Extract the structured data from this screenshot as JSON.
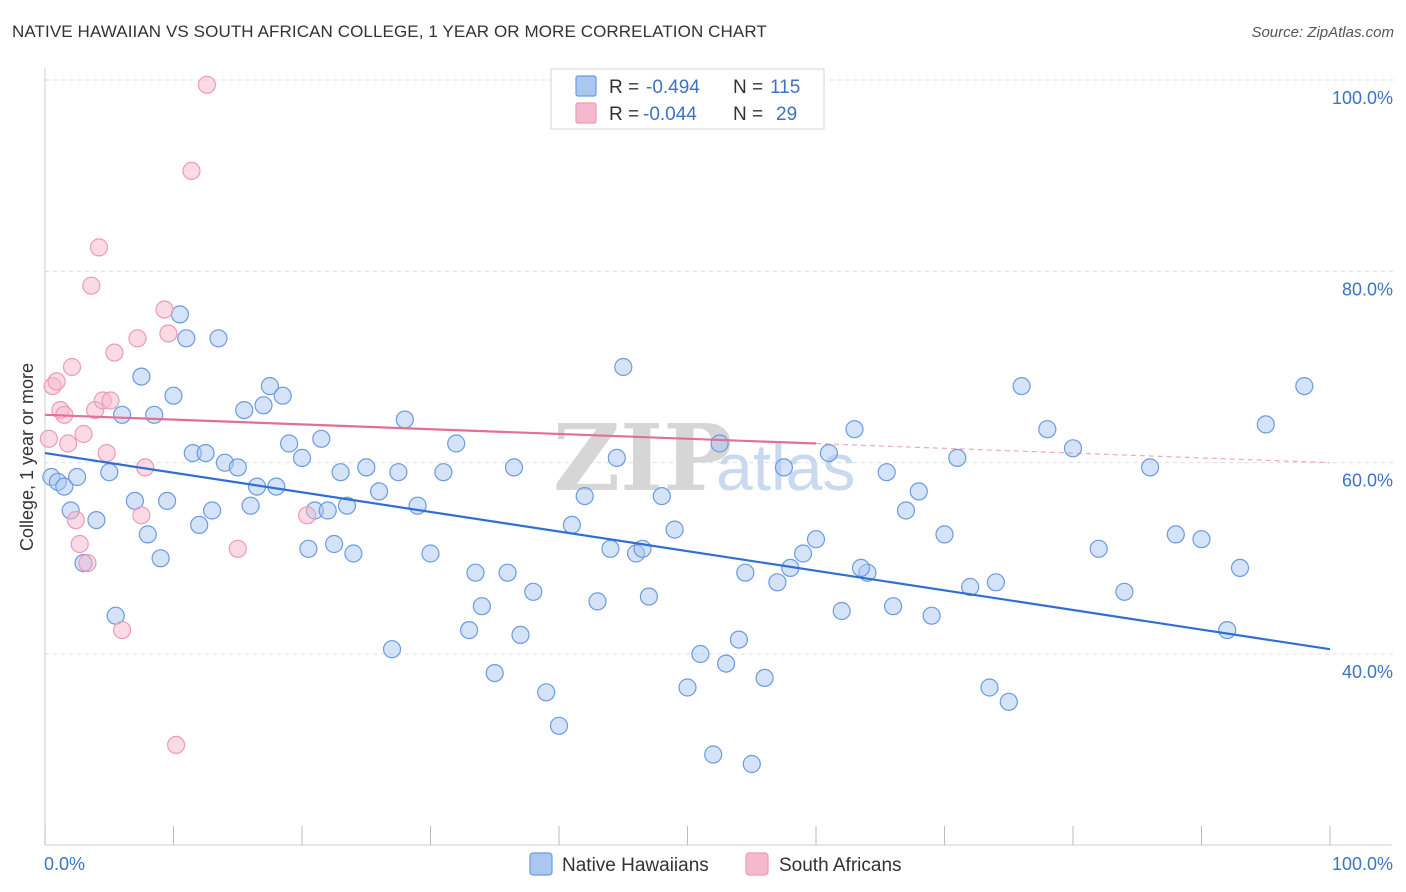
{
  "title": "NATIVE HAWAIIAN VS SOUTH AFRICAN COLLEGE, 1 YEAR OR MORE CORRELATION CHART",
  "source": "Source: ZipAtlas.com",
  "watermark": {
    "zip": "ZIP",
    "atlas": "atlas"
  },
  "legend": {
    "r_label": "R =",
    "n_label": "N =",
    "rows": [
      {
        "r": "-0.494",
        "n": "115",
        "color": "#a9c7ef"
      },
      {
        "r": "-0.044",
        "n": "29",
        "color": "#f6b8cc"
      }
    ]
  },
  "bottom_legend": [
    "Native Hawaiians",
    "South Africans"
  ],
  "chart_data": {
    "type": "scatter",
    "xlabel": "",
    "ylabel": "College, 1 year or more",
    "xlim": [
      0,
      100
    ],
    "ylim": [
      20,
      102
    ],
    "x_tick_labels": [
      "0.0%",
      "100.0%"
    ],
    "y_ticks": [
      40,
      60,
      80,
      100
    ],
    "y_tick_labels": [
      "40.0%",
      "60.0%",
      "80.0%",
      "100.0%"
    ],
    "grid": true,
    "legend_position": "top-center",
    "series": [
      {
        "name": "Native Hawaiians",
        "color": "#6b9be0",
        "fill": "#a9c7ef",
        "trend": {
          "x": [
            0,
            100
          ],
          "y": [
            61.0,
            40.5
          ],
          "line_color": "#2f6fd2"
        },
        "x": [
          0.5,
          1.0,
          1.5,
          2.0,
          2.5,
          3.0,
          4.0,
          5.0,
          5.5,
          6.0,
          7.0,
          7.5,
          8.0,
          8.5,
          9.0,
          9.5,
          10.0,
          10.5,
          11.0,
          11.5,
          12.0,
          13.0,
          13.5,
          14.0,
          15.0,
          15.5,
          16.5,
          17.0,
          17.5,
          18.0,
          18.5,
          19.0,
          20.0,
          20.5,
          21.0,
          21.5,
          22.0,
          23.0,
          23.5,
          24.0,
          25.0,
          26.0,
          27.0,
          28.0,
          29.0,
          30.0,
          31.0,
          32.0,
          33.0,
          34.0,
          35.0,
          36.0,
          37.0,
          38.0,
          39.0,
          40.0,
          41.0,
          42.0,
          43.0,
          44.0,
          45.0,
          46.0,
          47.0,
          48.0,
          49.0,
          50.0,
          51.0,
          52.0,
          53.0,
          54.0,
          55.0,
          56.0,
          57.0,
          58.0,
          59.0,
          60.0,
          61.0,
          62.0,
          63.0,
          64.0,
          66.0,
          67.0,
          68.0,
          69.0,
          70.0,
          71.0,
          72.0,
          74.0,
          75.0,
          76.0,
          78.0,
          80.0,
          82.0,
          84.0,
          86.0,
          88.0,
          90.0,
          93.0,
          95.0,
          98.0,
          12.5,
          16.0,
          22.5,
          27.5,
          33.5,
          36.5,
          44.5,
          46.5,
          52.5,
          54.5,
          57.5,
          63.5,
          65.5,
          73.5,
          92.0
        ],
        "y": [
          58.5,
          58.0,
          57.5,
          55.0,
          58.5,
          49.5,
          54.0,
          59.0,
          44.0,
          65.0,
          56.0,
          69.0,
          52.5,
          65.0,
          50.0,
          56.0,
          67.0,
          75.5,
          73.0,
          61.0,
          53.5,
          55.0,
          73.0,
          60.0,
          59.5,
          65.5,
          57.5,
          66.0,
          68.0,
          57.5,
          67.0,
          62.0,
          60.5,
          51.0,
          55.0,
          62.5,
          55.0,
          59.0,
          55.5,
          50.5,
          59.5,
          57.0,
          40.5,
          64.5,
          55.5,
          50.5,
          59.0,
          62.0,
          42.5,
          45.0,
          38.0,
          48.5,
          42.0,
          46.5,
          36.0,
          32.5,
          53.5,
          56.5,
          45.5,
          51.0,
          70.0,
          50.5,
          46.0,
          56.5,
          53.0,
          36.5,
          40.0,
          29.5,
          39.0,
          41.5,
          28.5,
          37.5,
          47.5,
          49.0,
          50.5,
          52.0,
          61.0,
          44.5,
          63.5,
          48.5,
          45.0,
          55.0,
          57.0,
          44.0,
          52.5,
          60.5,
          47.0,
          47.5,
          35.0,
          68.0,
          63.5,
          61.5,
          51.0,
          46.5,
          59.5,
          52.5,
          52.0,
          49.0,
          64.0,
          68.0,
          61.0,
          55.5,
          51.5,
          59.0,
          48.5,
          59.5,
          60.5,
          51.0,
          62.0,
          48.5,
          59.5,
          49.0,
          59.0,
          36.5,
          42.5
        ]
      },
      {
        "name": "South Africans",
        "color": "#ef9ab5",
        "fill": "#f6b8cc",
        "trend": {
          "x": [
            0,
            60
          ],
          "y": [
            65.0,
            62.0
          ],
          "dash_x": [
            60,
            100
          ],
          "dash_y": [
            62.0,
            60.0
          ],
          "line_color": "#e36e96"
        },
        "x": [
          0.3,
          0.6,
          0.9,
          1.2,
          1.5,
          1.8,
          2.1,
          2.4,
          2.7,
          3.0,
          3.3,
          3.6,
          3.9,
          4.2,
          4.5,
          4.8,
          5.1,
          5.4,
          6.0,
          7.2,
          7.5,
          7.8,
          9.3,
          9.6,
          10.2,
          11.4,
          12.6,
          15.0,
          20.4
        ],
        "y": [
          62.5,
          68.0,
          68.5,
          65.5,
          65.0,
          62.0,
          70.0,
          54.0,
          51.5,
          63.0,
          49.5,
          78.5,
          65.5,
          82.5,
          66.5,
          61.0,
          66.5,
          71.5,
          42.5,
          73.0,
          54.5,
          59.5,
          76.0,
          73.5,
          30.5,
          90.5,
          99.5,
          51.0,
          54.5
        ]
      }
    ]
  }
}
